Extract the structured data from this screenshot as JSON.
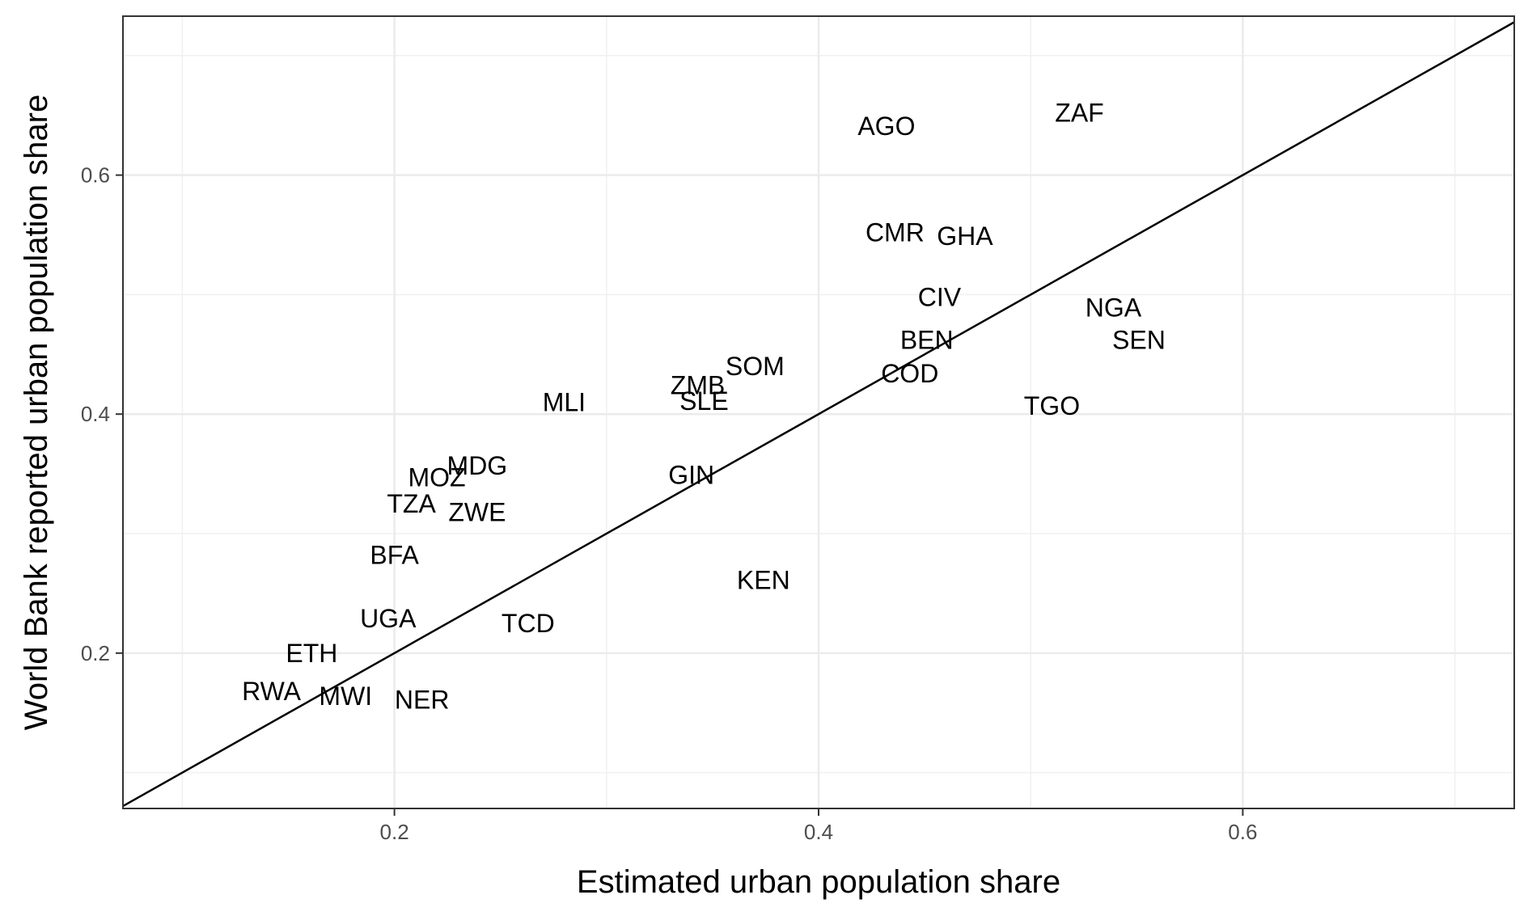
{
  "chart_data": {
    "type": "scatter",
    "xlabel": "Estimated urban population share",
    "ylabel": "World Bank reported urban population share",
    "xlim": [
      0.072,
      0.728
    ],
    "ylim": [
      0.07,
      0.733
    ],
    "x_ticks": [
      {
        "value": 0.2,
        "label": "0.2"
      },
      {
        "value": 0.4,
        "label": "0.4"
      },
      {
        "value": 0.6,
        "label": "0.6"
      }
    ],
    "y_ticks": [
      {
        "value": 0.2,
        "label": "0.2"
      },
      {
        "value": 0.4,
        "label": "0.4"
      },
      {
        "value": 0.6,
        "label": "0.6"
      }
    ],
    "grid": true,
    "reference_line": "y = x",
    "points": [
      {
        "label": "AGO",
        "x": 0.432,
        "y": 0.641
      },
      {
        "label": "ZAF",
        "x": 0.523,
        "y": 0.652
      },
      {
        "label": "CMR",
        "x": 0.436,
        "y": 0.552
      },
      {
        "label": "GHA",
        "x": 0.469,
        "y": 0.549
      },
      {
        "label": "CIV",
        "x": 0.457,
        "y": 0.498
      },
      {
        "label": "NGA",
        "x": 0.539,
        "y": 0.489
      },
      {
        "label": "BEN",
        "x": 0.451,
        "y": 0.462
      },
      {
        "label": "SEN",
        "x": 0.551,
        "y": 0.462
      },
      {
        "label": "SOM",
        "x": 0.37,
        "y": 0.44
      },
      {
        "label": "COD",
        "x": 0.443,
        "y": 0.434
      },
      {
        "label": "ZMB",
        "x": 0.343,
        "y": 0.424
      },
      {
        "label": "SLE",
        "x": 0.346,
        "y": 0.411
      },
      {
        "label": "MLI",
        "x": 0.28,
        "y": 0.41
      },
      {
        "label": "TGO",
        "x": 0.51,
        "y": 0.407
      },
      {
        "label": "MDG",
        "x": 0.239,
        "y": 0.357
      },
      {
        "label": "GIN",
        "x": 0.34,
        "y": 0.349
      },
      {
        "label": "MOZ",
        "x": 0.22,
        "y": 0.347
      },
      {
        "label": "TZA",
        "x": 0.208,
        "y": 0.325
      },
      {
        "label": "ZWE",
        "x": 0.239,
        "y": 0.318
      },
      {
        "label": "BFA",
        "x": 0.2,
        "y": 0.282
      },
      {
        "label": "KEN",
        "x": 0.374,
        "y": 0.261
      },
      {
        "label": "TCD",
        "x": 0.263,
        "y": 0.225
      },
      {
        "label": "UGA",
        "x": 0.197,
        "y": 0.229
      },
      {
        "label": "ETH",
        "x": 0.161,
        "y": 0.2
      },
      {
        "label": "RWA",
        "x": 0.142,
        "y": 0.168
      },
      {
        "label": "MWI",
        "x": 0.177,
        "y": 0.164
      },
      {
        "label": "NER",
        "x": 0.213,
        "y": 0.161
      }
    ]
  }
}
